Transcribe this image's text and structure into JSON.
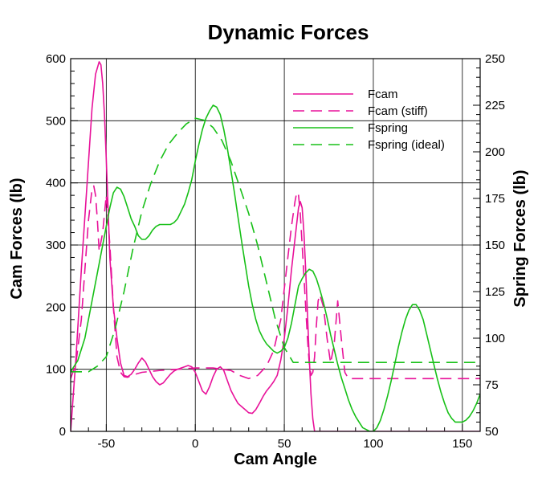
{
  "chart_data": {
    "type": "line",
    "title": "Dynamic Forces",
    "xlabel": "Cam Angle",
    "ylabel": "Cam Forces (lb)",
    "y2label": "Spring Forces (lb)",
    "xlim": [
      -70,
      160
    ],
    "ylim": [
      0,
      600
    ],
    "y2lim": [
      50,
      250
    ],
    "xticks": [
      -50,
      0,
      50,
      100,
      150
    ],
    "yticks": [
      0,
      100,
      200,
      300,
      400,
      500,
      600
    ],
    "y2ticks": [
      50,
      75,
      100,
      125,
      150,
      175,
      200,
      225,
      250
    ],
    "grid": true,
    "legend_position": "top-right",
    "series": [
      {
        "name": "Fcam",
        "axis": "left",
        "color": "#e8129a",
        "dash": "solid",
        "x": [
          -70,
          -67,
          -64,
          -61,
          -58,
          -56,
          -54,
          -53,
          -52,
          -51,
          -50,
          -49,
          -48,
          -46,
          -44,
          -42,
          -40,
          -38,
          -36,
          -34,
          -32,
          -30,
          -28,
          -26,
          -24,
          -22,
          -20,
          -18,
          -16,
          -14,
          -12,
          -10,
          -8,
          -6,
          -4,
          -2,
          0,
          2,
          4,
          6,
          8,
          10,
          12,
          14,
          16,
          18,
          20,
          22,
          24,
          26,
          28,
          30,
          32,
          34,
          36,
          38,
          40,
          42,
          44,
          46,
          48,
          50,
          52,
          54,
          56,
          57,
          58,
          59,
          60,
          61,
          62,
          63,
          64,
          65,
          66,
          67,
          70,
          80,
          100,
          120,
          140,
          160
        ],
        "y": [
          0,
          120,
          260,
          390,
          520,
          575,
          595,
          590,
          560,
          510,
          440,
          360,
          280,
          200,
          150,
          110,
          90,
          88,
          92,
          100,
          110,
          118,
          112,
          100,
          88,
          80,
          75,
          78,
          85,
          92,
          97,
          100,
          102,
          104,
          106,
          104,
          95,
          80,
          65,
          60,
          72,
          88,
          100,
          104,
          98,
          82,
          66,
          55,
          45,
          40,
          35,
          30,
          29,
          35,
          45,
          56,
          65,
          72,
          80,
          90,
          115,
          150,
          200,
          260,
          310,
          335,
          360,
          370,
          360,
          320,
          260,
          190,
          120,
          60,
          20,
          0,
          0,
          0,
          0,
          0,
          0,
          0
        ]
      },
      {
        "name": "Fcam (stiff)",
        "axis": "left",
        "color": "#e8129a",
        "dash": "dashed",
        "x": [
          -70,
          -67,
          -64,
          -62,
          -60,
          -58,
          -57,
          -56,
          -55,
          -54,
          -52,
          -50,
          -48,
          -46,
          -44,
          -42,
          -40,
          -38,
          -36,
          -30,
          -20,
          -10,
          0,
          10,
          20,
          25,
          30,
          35,
          40,
          44,
          48,
          50,
          52,
          54,
          56,
          57,
          58,
          59,
          60,
          61,
          62,
          63,
          64,
          65,
          66,
          67,
          68,
          69,
          70,
          72,
          74,
          76,
          78,
          80,
          82,
          84,
          86,
          100,
          120,
          140,
          160
        ],
        "y": [
          85,
          110,
          180,
          260,
          340,
          390,
          395,
          380,
          340,
          290,
          320,
          380,
          300,
          200,
          120,
          95,
          88,
          87,
          90,
          95,
          98,
          100,
          102,
          102,
          98,
          90,
          85,
          90,
          105,
          130,
          180,
          230,
          280,
          330,
          370,
          385,
          380,
          350,
          300,
          250,
          200,
          150,
          110,
          90,
          95,
          120,
          170,
          210,
          220,
          200,
          150,
          110,
          140,
          210,
          150,
          95,
          85,
          85,
          85,
          85,
          85
        ]
      },
      {
        "name": "Fspring",
        "axis": "right",
        "color": "#18c018",
        "dash": "solid",
        "x": [
          -70,
          -66,
          -62,
          -58,
          -54,
          -50,
          -48,
          -46,
          -44,
          -42,
          -40,
          -38,
          -36,
          -34,
          -32,
          -30,
          -28,
          -26,
          -24,
          -22,
          -20,
          -18,
          -16,
          -14,
          -12,
          -10,
          -8,
          -6,
          -4,
          -2,
          0,
          2,
          4,
          6,
          8,
          10,
          12,
          14,
          16,
          18,
          20,
          22,
          24,
          26,
          28,
          30,
          32,
          34,
          36,
          38,
          40,
          42,
          44,
          46,
          48,
          50,
          52,
          54,
          56,
          58,
          60,
          62,
          64,
          66,
          68,
          70,
          72,
          74,
          76,
          78,
          80,
          82,
          84,
          86,
          88,
          90,
          92,
          94,
          96,
          98,
          100,
          102,
          104,
          106,
          108,
          110,
          112,
          114,
          116,
          118,
          120,
          122,
          124,
          126,
          128,
          130,
          132,
          134,
          136,
          138,
          140,
          142,
          144,
          146,
          148,
          150,
          152,
          154,
          156,
          158,
          160
        ],
        "y": [
          82,
          88,
          100,
          120,
          140,
          160,
          170,
          178,
          181,
          180,
          176,
          170,
          164,
          160,
          155,
          153,
          153,
          155,
          158,
          160,
          161,
          161,
          161,
          161,
          162,
          164,
          168,
          172,
          178,
          185,
          195,
          204,
          212,
          218,
          222,
          225,
          224,
          220,
          212,
          202,
          190,
          178,
          165,
          152,
          140,
          128,
          118,
          110,
          104,
          100,
          97,
          95,
          93,
          92,
          93,
          95,
          100,
          108,
          118,
          128,
          132,
          135,
          137,
          136,
          132,
          126,
          119,
          111,
          102,
          94,
          86,
          79,
          73,
          67,
          62,
          58,
          55,
          52,
          51,
          50,
          50,
          52,
          56,
          62,
          69,
          77,
          86,
          95,
          103,
          110,
          115,
          118,
          118,
          115,
          110,
          102,
          94,
          86,
          78,
          71,
          65,
          60,
          57,
          55,
          55,
          55,
          56,
          58,
          61,
          65,
          70
        ]
      },
      {
        "name": "Fspring (ideal)",
        "axis": "right",
        "color": "#18c018",
        "dash": "dashed",
        "x": [
          -70,
          -60,
          -55,
          -50,
          -45,
          -40,
          -35,
          -30,
          -25,
          -20,
          -15,
          -10,
          -5,
          0,
          5,
          10,
          15,
          20,
          25,
          30,
          35,
          40,
          45,
          50,
          55,
          60,
          65,
          70,
          80,
          100,
          120,
          140,
          160
        ],
        "y": [
          82,
          82,
          85,
          90,
          105,
          125,
          148,
          168,
          183,
          195,
          204,
          210,
          215,
          218,
          217,
          213,
          206,
          195,
          181,
          167,
          150,
          130,
          110,
          95,
          87,
          87,
          87,
          87,
          87,
          87,
          87,
          87,
          87
        ]
      }
    ]
  }
}
